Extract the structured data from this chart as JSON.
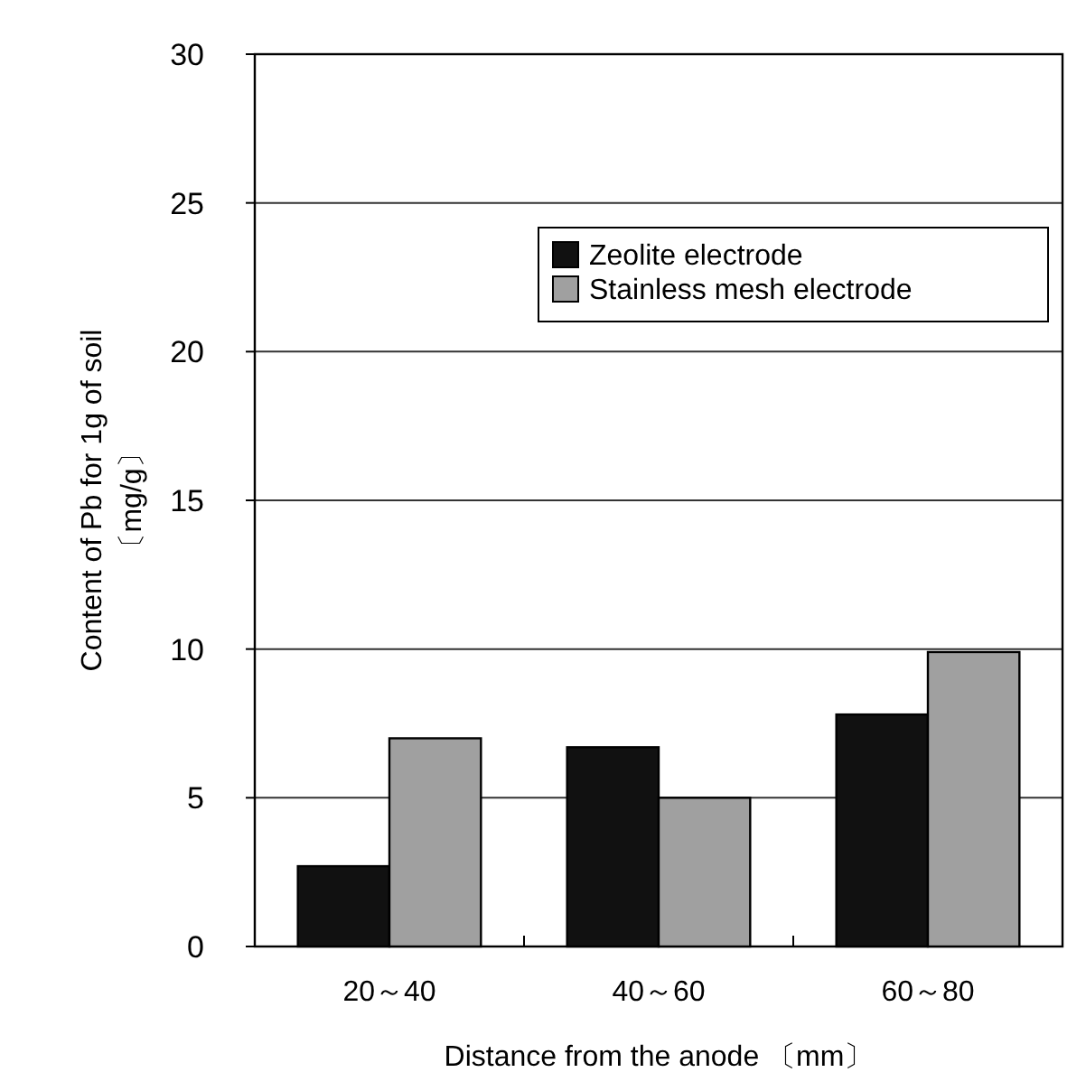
{
  "chart_data": {
    "type": "bar",
    "xlabel": "Distance from the anode 〔mm〕",
    "ylabel": "Content of Pb for 1g of soil\n〔mg/g〕",
    "categories": [
      "20～40",
      "40～60",
      "60～80"
    ],
    "series": [
      {
        "name": "Zeolite electrode",
        "color": "#111111",
        "values": [
          2.7,
          6.7,
          7.8
        ]
      },
      {
        "name": "Stainless mesh electrode",
        "color": "#a0a0a0",
        "values": [
          7.0,
          5.0,
          9.9
        ]
      }
    ],
    "ylim": [
      0,
      30
    ],
    "yticks": [
      0,
      5,
      10,
      15,
      20,
      25,
      30
    ],
    "grid": "y",
    "legend": "top right"
  }
}
